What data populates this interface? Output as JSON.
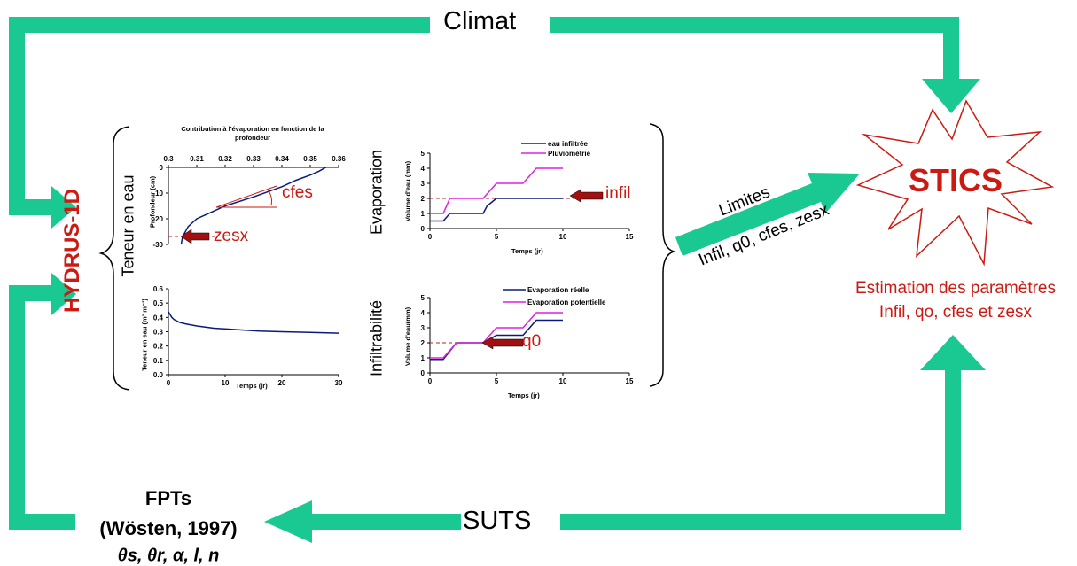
{
  "colors": {
    "arrow": "#1ac991",
    "accent_red": "#cc1a12",
    "series_navy": "#0a1a7a",
    "series_magenta": "#e020e0",
    "dashed_red": "#b02020"
  },
  "labels": {
    "climat": "Climat",
    "suts": "SUTS",
    "hydrus": "HYDRUS-1D",
    "stics": "STICS",
    "limites": "Limites",
    "limites_params": "Infil, q0, cfes, zesx",
    "estimation_line1": "Estimation des paramètres",
    "estimation_line2": "Infil, qo, cfes et zesx",
    "fpts_title": "FPTs",
    "fpts_ref": "(Wösten, 1997)",
    "fpts_params": "θs, θr, α, l, n",
    "teneur_en_eau": "Teneur en eau",
    "evaporation": "Evaporation",
    "infiltrabilite": "Infiltrabilité"
  },
  "annotations": {
    "cfes": "cfes",
    "zesx": "zesx",
    "infil": "infil",
    "q0": "q0"
  },
  "chart_data": [
    {
      "id": "evap-depth",
      "type": "line",
      "title": "Contribution à l'évaporation en fonction de la profondeur",
      "ylabel": "Profondeur (cm)",
      "xlim": [
        0.3,
        0.36
      ],
      "ylim": [
        -30,
        0
      ],
      "xticks": [
        "0.3",
        "0.31",
        "0.32",
        "0.33",
        "0.34",
        "0.35",
        "0.36"
      ],
      "yticks": [
        "0",
        "-10",
        "-20",
        "-30"
      ],
      "series": [
        {
          "x": [
            0.3045,
            0.305,
            0.307,
            0.31,
            0.315,
            0.32,
            0.33,
            0.34,
            0.345,
            0.35,
            0.353,
            0.3555
          ],
          "y": [
            -30,
            -27,
            -23,
            -20,
            -17.5,
            -15,
            -11.5,
            -7.5,
            -5,
            -3,
            -1.5,
            0
          ]
        }
      ]
    },
    {
      "id": "teneur-time",
      "type": "line",
      "xlabel": "Temps (jr)",
      "ylabel": "Teneur en eau (m³ m⁻³)",
      "xlim": [
        0,
        30
      ],
      "ylim": [
        0,
        0.6
      ],
      "xticks": [
        "0",
        "10",
        "20",
        "30"
      ],
      "yticks": [
        "0.0",
        "0.1",
        "0.2",
        "0.3",
        "0.4",
        "0.5",
        "0.6"
      ],
      "series": [
        {
          "x": [
            0,
            0.3,
            0.6,
            1,
            2,
            3,
            5,
            8,
            12,
            16,
            20,
            25,
            30
          ],
          "y": [
            0.44,
            0.42,
            0.4,
            0.385,
            0.365,
            0.355,
            0.34,
            0.325,
            0.315,
            0.305,
            0.3,
            0.295,
            0.29
          ]
        }
      ]
    },
    {
      "id": "evap-volume",
      "type": "line",
      "xlabel": "Temps (jr)",
      "ylabel": "Volume d'eau (mm)",
      "xlim": [
        0,
        15
      ],
      "ylim": [
        0,
        5
      ],
      "xticks": [
        "0",
        "5",
        "10",
        "15"
      ],
      "yticks": [
        "0",
        "1",
        "2",
        "3",
        "4",
        "5"
      ],
      "series": [
        {
          "name": "eau infiltrée",
          "color": "#0a1a7a",
          "x": [
            0,
            1,
            1.5,
            4,
            4.3,
            5,
            10
          ],
          "y": [
            0.5,
            0.5,
            1,
            1,
            1.5,
            2,
            2
          ]
        },
        {
          "name": "Pluviométrie",
          "color": "#e020e0",
          "x": [
            0,
            1,
            1.5,
            4,
            4.5,
            5,
            7,
            8,
            10
          ],
          "y": [
            1,
            1,
            2,
            2,
            2.5,
            3,
            3,
            4,
            4
          ]
        }
      ]
    },
    {
      "id": "infil-volume",
      "type": "line",
      "xlabel": "Temps (jr)",
      "ylabel": "Volume d'eau(mm)",
      "xlim": [
        0,
        15
      ],
      "ylim": [
        0,
        5
      ],
      "xticks": [
        "0",
        "5",
        "10",
        "15"
      ],
      "yticks": [
        "0",
        "1",
        "2",
        "3",
        "4",
        "5"
      ],
      "series": [
        {
          "name": "Evaporation réelle",
          "color": "#0a1a7a",
          "x": [
            0,
            1,
            2,
            4,
            5,
            7,
            8,
            10
          ],
          "y": [
            0.9,
            0.9,
            2,
            2,
            2.5,
            2.5,
            3.5,
            3.5
          ]
        },
        {
          "name": "Evaporation potentielle",
          "color": "#e020e0",
          "x": [
            0,
            1,
            2,
            4,
            5,
            7,
            8,
            10
          ],
          "y": [
            1,
            1,
            2,
            2,
            3,
            3,
            4,
            4
          ]
        }
      ]
    }
  ]
}
